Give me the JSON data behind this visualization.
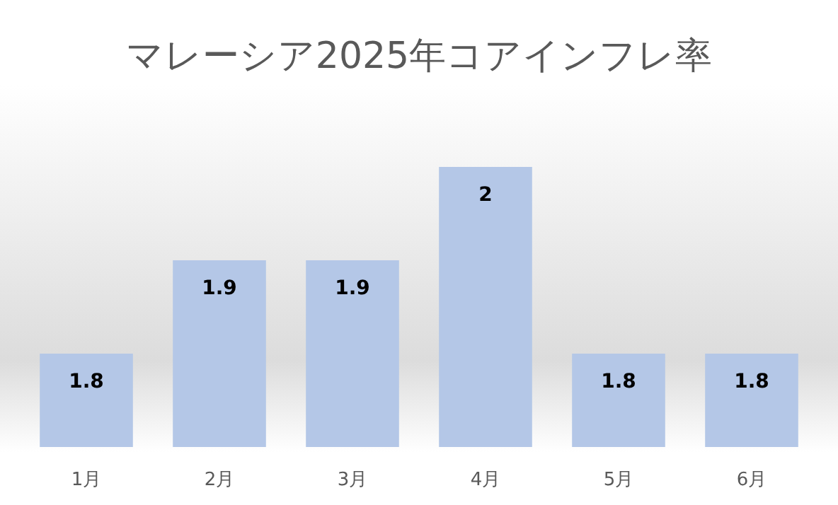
{
  "chart_data": {
    "type": "bar",
    "title": "マレーシア2025年コアインフレ率",
    "categories": [
      "1月",
      "2月",
      "3月",
      "4月",
      "5月",
      "6月"
    ],
    "values": [
      1.8,
      1.9,
      1.9,
      2,
      1.8,
      1.8
    ],
    "color": "#b4c7e7",
    "ylim": [
      1.7,
      2
    ],
    "data_labels": true
  }
}
